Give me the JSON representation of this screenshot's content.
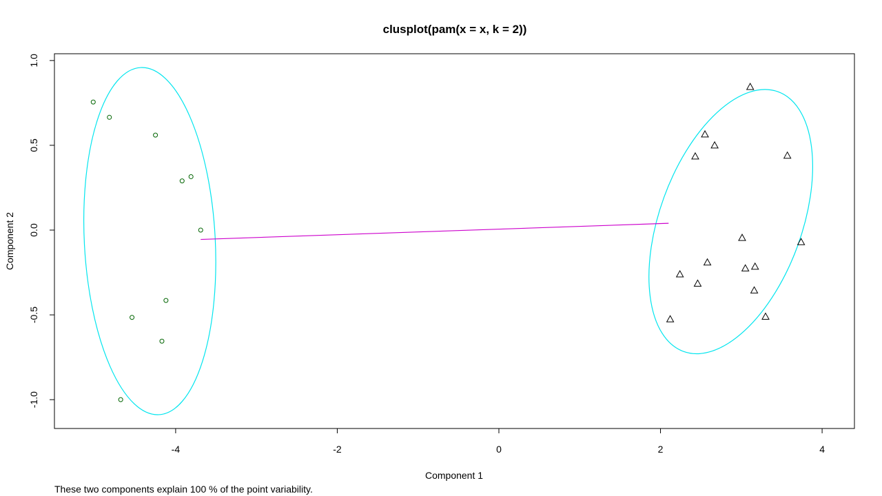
{
  "chart_data": {
    "type": "scatter",
    "title": "clusplot(pam(x = x, k = 2))",
    "xlabel": "Component 1",
    "ylabel": "Component 2",
    "subtitle": "These two components explain 100 % of the point variability.",
    "xlim": [
      -5.5,
      4.4
    ],
    "ylim": [
      -1.17,
      1.04
    ],
    "xticks": [
      -4,
      -2,
      0,
      2,
      4
    ],
    "yticks": [
      -1.0,
      -0.5,
      0.0,
      0.5,
      1.0
    ],
    "ytick_labels": [
      "-1.0",
      "-0.5",
      "0.0",
      "0.5",
      "1.0"
    ],
    "xtick_labels": [
      "-4",
      "-2",
      "0",
      "2",
      "4"
    ],
    "clusters": [
      {
        "marker": "circle",
        "points": [
          [
            -5.02,
            0.755
          ],
          [
            -4.82,
            0.665
          ],
          [
            -4.25,
            0.56
          ],
          [
            -3.92,
            0.29
          ],
          [
            -3.81,
            0.315
          ],
          [
            -3.69,
            0.0
          ],
          [
            -4.12,
            -0.415
          ],
          [
            -4.54,
            -0.515
          ],
          [
            -4.17,
            -0.655
          ],
          [
            -4.68,
            -1.0
          ]
        ],
        "ellipse": {
          "center": [
            -4.32,
            -0.065
          ],
          "semi_x": 0.81,
          "semi_y": 1.025,
          "tilt_deg": -3
        }
      },
      {
        "marker": "triangle",
        "points": [
          [
            3.11,
            0.845
          ],
          [
            2.55,
            0.565
          ],
          [
            2.67,
            0.5
          ],
          [
            2.43,
            0.435
          ],
          [
            3.57,
            0.44
          ],
          [
            3.01,
            -0.045
          ],
          [
            3.74,
            -0.07
          ],
          [
            2.58,
            -0.19
          ],
          [
            3.17,
            -0.215
          ],
          [
            3.05,
            -0.225
          ],
          [
            2.24,
            -0.26
          ],
          [
            2.46,
            -0.315
          ],
          [
            3.16,
            -0.355
          ],
          [
            3.3,
            -0.51
          ],
          [
            2.12,
            -0.525
          ]
        ],
        "ellipse": {
          "center": [
            2.87,
            0.05
          ],
          "semi_x": 0.88,
          "semi_y": 0.815,
          "tilt_deg": 20
        }
      }
    ],
    "connector": {
      "from": [
        -3.69,
        -0.055
      ],
      "to": [
        2.1,
        0.04
      ]
    },
    "colors": {
      "ellipse": "#00e5ee",
      "points": "#006400",
      "connector": "#cc00cc",
      "frame": "#000000"
    }
  }
}
